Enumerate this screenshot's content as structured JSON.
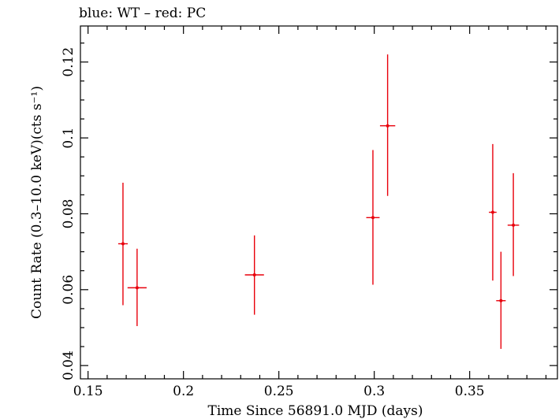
{
  "chart_data": {
    "type": "scatter",
    "title": "blue: WT – red: PC",
    "xlabel": "Time Since 56891.0 MJD (days)",
    "ylabel": "Count Rate (0.3–10.0 keV)(cts s⁻¹)",
    "xlim": [
      0.146,
      0.396
    ],
    "ylim": [
      0.0365,
      0.1295
    ],
    "xticks": [
      0.15,
      0.2,
      0.25,
      0.3,
      0.35
    ],
    "xtick_labels": [
      "0.15",
      "0.2",
      "0.25",
      "0.3",
      "0.35"
    ],
    "yticks": [
      0.04,
      0.06,
      0.08,
      0.1,
      0.12
    ],
    "ytick_labels": [
      "0.04",
      "0.06",
      "0.08",
      "0.1",
      "0.12"
    ],
    "grid": false,
    "series": [
      {
        "color": "#e8000b",
        "points": [
          {
            "x": 0.1683,
            "xerr": 0.0025,
            "y": 0.0721,
            "ylo": 0.0559,
            "yhi": 0.0882
          },
          {
            "x": 0.1757,
            "xerr": 0.005,
            "y": 0.0605,
            "ylo": 0.0504,
            "yhi": 0.0708
          },
          {
            "x": 0.2372,
            "xerr": 0.005,
            "y": 0.0639,
            "ylo": 0.0534,
            "yhi": 0.0743
          },
          {
            "x": 0.2993,
            "xerr": 0.0035,
            "y": 0.079,
            "ylo": 0.0613,
            "yhi": 0.0968
          },
          {
            "x": 0.307,
            "xerr": 0.004,
            "y": 0.1032,
            "ylo": 0.0847,
            "yhi": 0.122
          },
          {
            "x": 0.3621,
            "xerr": 0.002,
            "y": 0.0804,
            "ylo": 0.0624,
            "yhi": 0.0984
          },
          {
            "x": 0.3664,
            "xerr": 0.0025,
            "y": 0.0571,
            "ylo": 0.0444,
            "yhi": 0.07
          },
          {
            "x": 0.3729,
            "xerr": 0.003,
            "y": 0.077,
            "ylo": 0.0636,
            "yhi": 0.0907
          }
        ]
      }
    ]
  }
}
